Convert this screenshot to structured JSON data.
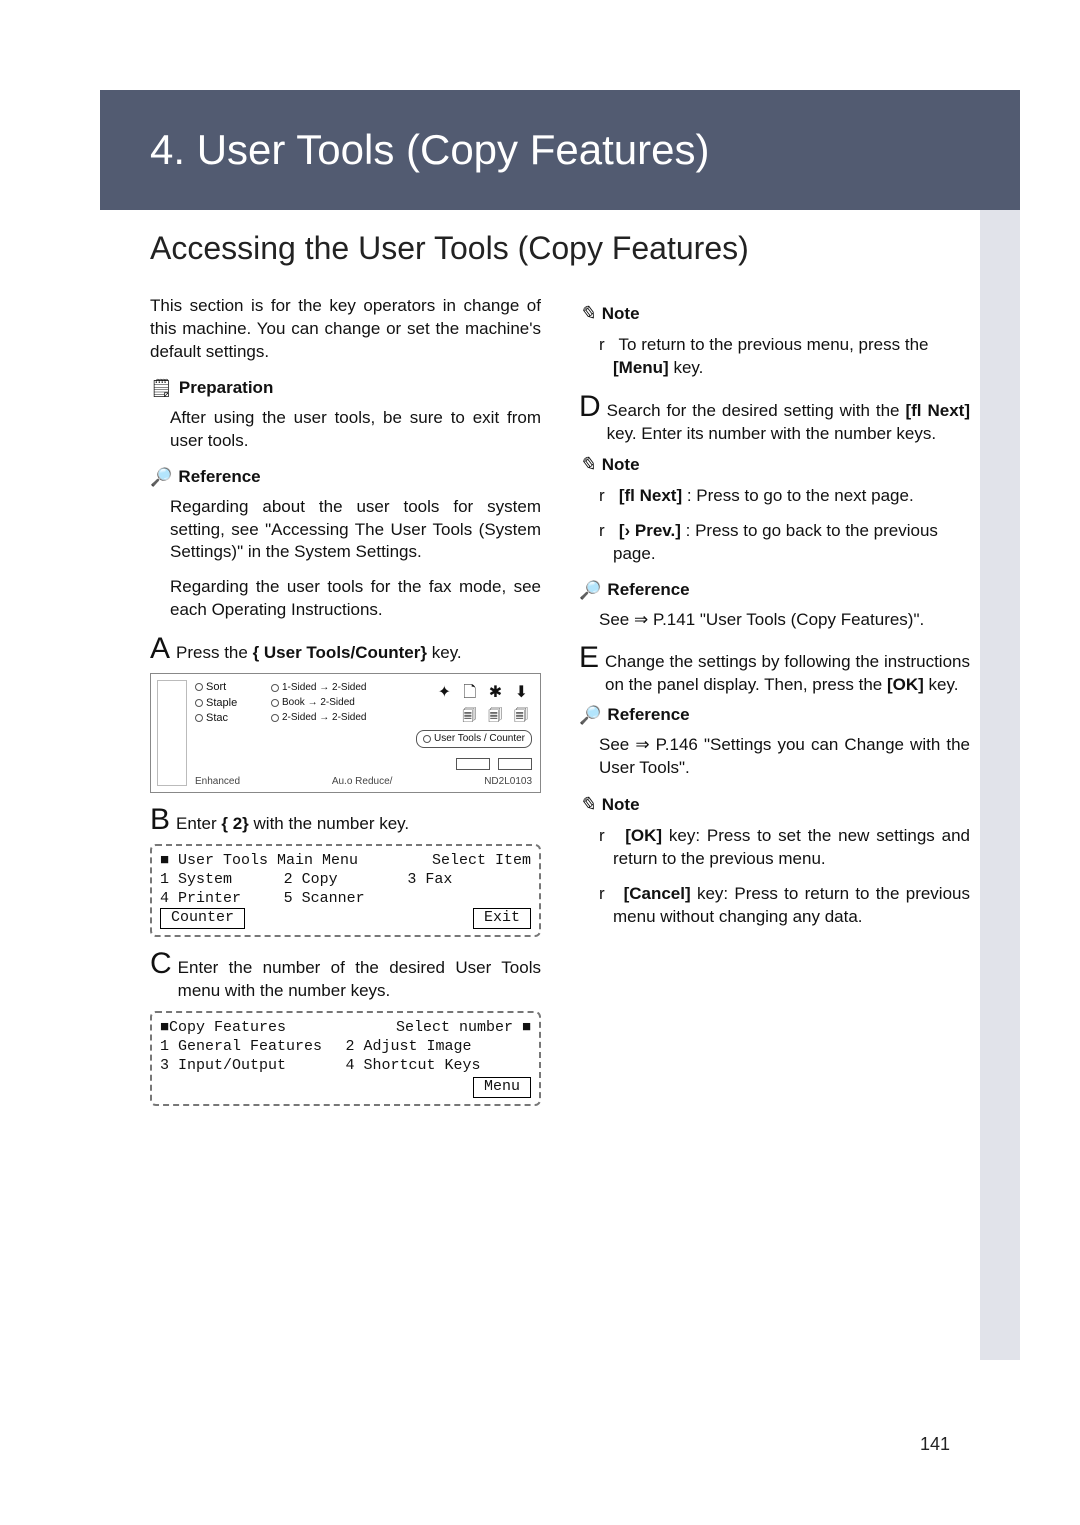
{
  "chapter_title": "4. User Tools (Copy Features)",
  "section_title": "Accessing the User Tools (Copy Features)",
  "page_number": "141",
  "left": {
    "intro": "This section is for the key operators in change of this machine. You can change or set the machine's default settings.",
    "prep_label": "Preparation",
    "prep_text": "After using the user tools, be sure to exit from user tools.",
    "ref_label": "Reference",
    "ref_p1": "Regarding about the user tools for system setting, see \"Accessing The User Tools (System Settings)\" in the System Settings.",
    "ref_p2": "Regarding the user tools for the fax mode, see each Operating Instructions.",
    "stepA_letter": "A",
    "stepA_pre": "Press the",
    "stepA_key": "{ User Tools/Counter}",
    "stepA_post": " key.",
    "stepB_letter": "B",
    "stepB_pre": "Enter ",
    "stepB_key": "{ 2}",
    "stepB_post": " with the number key.",
    "stepC_letter": "C",
    "stepC_text": "Enter the number of the desired User Tools menu with the number keys.",
    "ctrlpanel": {
      "sort": "Sort",
      "staple": "Staple",
      "stac": "Stac",
      "c2_1": "1-Sided → 2-Sided",
      "c2_2": "Book → 2-Sided",
      "c2_3": "2-Sided → 2-Sided",
      "icons_top": "✦ 🗋 ✱ ⬇",
      "icons_mid": "🗐 🗐 🗐",
      "ut": "User Tools / Counter",
      "foot_l": "Enhanced",
      "foot_m": "Au.o Reduce/",
      "foot_r": "ND2L0103"
    },
    "panel1": {
      "title_l": "■ User Tools Main Menu",
      "title_r": "Select Item",
      "r1c1": "1 System",
      "r1c2": "2 Copy",
      "r1c3": "3 Fax",
      "r2c1": "4 Printer",
      "r2c2": "5 Scanner",
      "r2c3": "",
      "r3c1": "Counter",
      "btn": "Exit"
    },
    "panel2": {
      "title_l": "■Copy Features",
      "title_r": "Select number ■",
      "r1c1": "1 General Features",
      "r1c2": "2 Adjust Image",
      "r2c1": "3 Input/Output",
      "r2c2": "4 Shortcut Keys",
      "btn": "Menu"
    }
  },
  "right": {
    "note_label": "Note",
    "noteA_item": "To return to the previous menu, press the",
    "noteA_key": "[Menu]",
    "noteA_post": " key.",
    "stepD_letter": "D",
    "stepD_pre": "Search for the desired setting with the ",
    "stepD_key": "[fl Next]",
    "stepD_post": " key. Enter its number with the number keys.",
    "noteB_item1_key": "[fl Next]",
    "noteB_item1_txt": ": Press to go to the next page.",
    "noteB_item2_key": "[› Prev.]",
    "noteB_item2_txt": ": Press to go back to the previous page.",
    "refD_label": "Reference",
    "refD_text": "See ⇒ P.141 \"User Tools (Copy Features)\".",
    "stepE_letter": "E",
    "stepE_pre": "Change the settings by following the instructions on the panel display. Then, press the ",
    "stepE_key": "[OK]",
    "stepE_post": " key.",
    "refE_label": "Reference",
    "refE_text": "See ⇒ P.146 \"Settings you can Change with the User Tools\".",
    "noteE_item1_key": "[OK]",
    "noteE_item1_txt": " key: Press to set the new settings and return to the previous menu.",
    "noteE_item2_key": "[Cancel]",
    "noteE_item2_txt": " key: Press to return to the previous menu without changing any data."
  }
}
